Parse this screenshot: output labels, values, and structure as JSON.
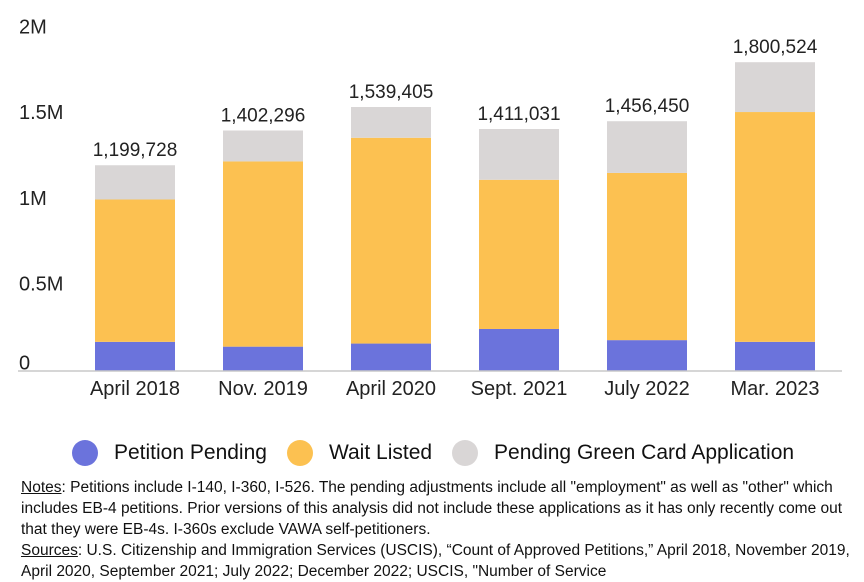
{
  "chart_data": {
    "type": "bar",
    "stacked": true,
    "categories": [
      "April 2018",
      "Nov. 2019",
      "April 2020",
      "Sept. 2021",
      "July 2022",
      "Mar. 2023"
    ],
    "series": [
      {
        "name": "Petition Pending",
        "color": "#6b73dc",
        "values": [
          170000,
          142000,
          160000,
          245000,
          180000,
          170000
        ]
      },
      {
        "name": "Wait Listed",
        "color": "#fcc151",
        "values": [
          830000,
          1080000,
          1200000,
          870000,
          975000,
          1340000
        ]
      },
      {
        "name": "Pending Green Card Application",
        "color": "#d9d6d6",
        "values": [
          199728,
          180296,
          179405,
          296031,
          301450,
          290524
        ]
      }
    ],
    "totals": [
      "1,199,728",
      "1,402,296",
      "1,539,405",
      "1,411,031",
      "1,456,450",
      "1,800,524"
    ],
    "y_ticks": [
      {
        "value": 0,
        "label": "0"
      },
      {
        "value": 500000,
        "label": "0.5M"
      },
      {
        "value": 1000000,
        "label": "1M"
      },
      {
        "value": 1500000,
        "label": "1.5M"
      },
      {
        "value": 2000000,
        "label": "2M"
      }
    ],
    "ylim": [
      0,
      2000000
    ],
    "grid": false,
    "legend_position": "bottom"
  },
  "notes": {
    "notes_label": "Notes",
    "notes_text": ": Petitions include I-140, I-360, I-526. The pending adjustments include all \"employment\" as well as \"other\" which includes EB-4 petitions. Prior versions of this analysis did not include these applications as it has only recently come out that they were EB-4s. I-360s exclude VAWA self-petitioners.",
    "sources_label": "Sources",
    "sources_text": ": U.S. Citizenship and Immigration Services (USCIS), “Count of Approved Petitions,” April 2018, November 2019, April 2020, September 2021; July 2022; December 2022; USCIS, \"Number of Service"
  }
}
